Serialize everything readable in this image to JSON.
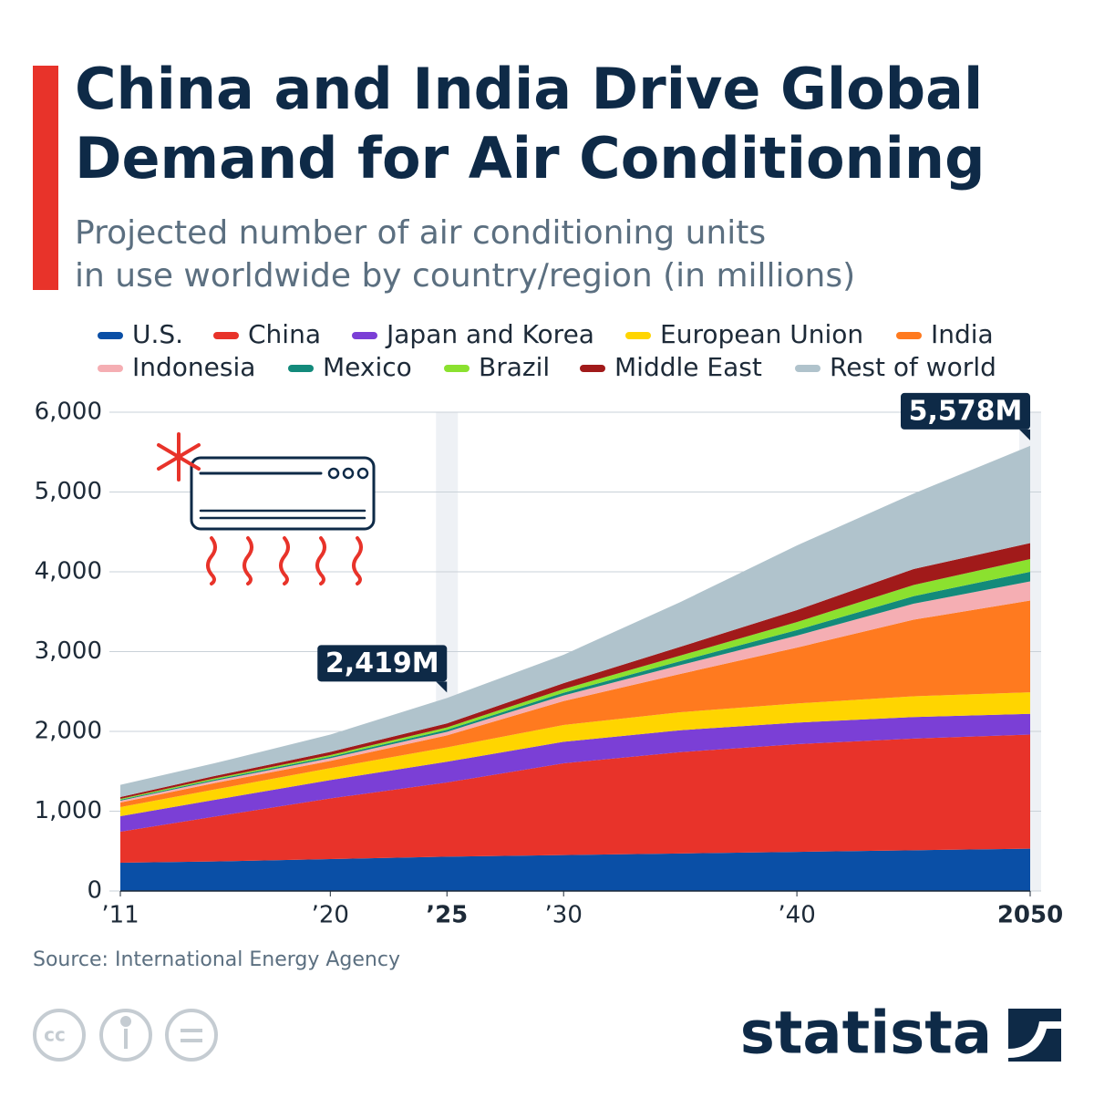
{
  "chart_data": {
    "type": "stacked-area",
    "title": [
      "China and India Drive Global",
      "Demand for Air Conditioning"
    ],
    "subtitle": [
      "Projected number of air conditioning units",
      "in use worldwide by country/region (in millions)"
    ],
    "x": [
      2011,
      2015,
      2020,
      2025,
      2030,
      2035,
      2040,
      2045,
      2050
    ],
    "xlim": [
      2011,
      2050
    ],
    "xticks": [
      {
        "value": 2011,
        "label": "’11"
      },
      {
        "value": 2020,
        "label": "’20"
      },
      {
        "value": 2025,
        "label": "’25"
      },
      {
        "value": 2030,
        "label": "’30"
      },
      {
        "value": 2040,
        "label": "’40"
      },
      2050
    ],
    "bold_xticks": [
      2025,
      2050
    ],
    "ylim": [
      0,
      6000
    ],
    "yticks": [
      0,
      {
        "value": 1000,
        "label": "1,000"
      },
      {
        "value": 2000,
        "label": "2,000"
      },
      {
        "value": 3000,
        "label": "3,000"
      },
      {
        "value": 4000,
        "label": "4,000"
      },
      {
        "value": 5000,
        "label": "5,000"
      },
      {
        "value": 6000,
        "label": "6,000"
      }
    ],
    "grid": true,
    "series": [
      {
        "name": "U.S.",
        "color": "#0a4fa6",
        "values": [
          354,
          370,
          400,
          430,
          450,
          470,
          490,
          510,
          530
        ]
      },
      {
        "name": "China",
        "color": "#e8332a",
        "values": [
          389,
          560,
          760,
          930,
          1150,
          1270,
          1350,
          1400,
          1430
        ]
      },
      {
        "name": "Japan and Korea",
        "color": "#7b3fd6",
        "values": [
          194,
          210,
          230,
          260,
          270,
          275,
          270,
          270,
          260
        ]
      },
      {
        "name": "European Union",
        "color": "#ffd500",
        "values": [
          114,
          130,
          150,
          180,
          210,
          225,
          240,
          260,
          270
        ]
      },
      {
        "name": "India",
        "color": "#ff7a1f",
        "values": [
          58,
          80,
          90,
          150,
          300,
          480,
          700,
          960,
          1150
        ]
      },
      {
        "name": "Indonesia",
        "color": "#f5aeb3",
        "values": [
          22,
          28,
          35,
          45,
          70,
          110,
          150,
          200,
          240
        ]
      },
      {
        "name": "Mexico",
        "color": "#138a7b",
        "values": [
          12,
          15,
          18,
          25,
          35,
          50,
          70,
          95,
          120
        ]
      },
      {
        "name": "Brazil",
        "color": "#8be12f",
        "values": [
          11,
          15,
          20,
          30,
          45,
          70,
          100,
          140,
          160
        ]
      },
      {
        "name": "Middle East",
        "color": "#a11a1a",
        "values": [
          23,
          30,
          40,
          50,
          75,
          110,
          150,
          200,
          200
        ]
      },
      {
        "name": "Rest of world",
        "color": "#b0c3cc",
        "values": [
          153,
          160,
          217,
          319,
          355,
          560,
          810,
          945,
          1218
        ]
      }
    ],
    "annotations": [
      {
        "x": 2025,
        "value": 2419,
        "label": "2,419M"
      },
      {
        "x": 2050,
        "value": 5578,
        "label": "5,578M"
      }
    ],
    "source": "Source: International Energy Agency"
  },
  "brand": "statista"
}
